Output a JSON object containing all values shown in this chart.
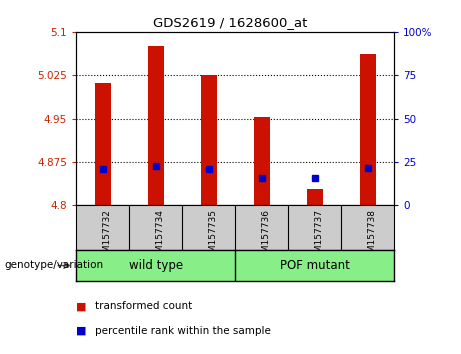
{
  "title": "GDS2619 / 1628600_at",
  "samples": [
    "GSM157732",
    "GSM157734",
    "GSM157735",
    "GSM157736",
    "GSM157737",
    "GSM157738"
  ],
  "bar_values": [
    5.012,
    5.075,
    5.025,
    4.952,
    4.828,
    5.062
  ],
  "percentile_values": [
    4.862,
    4.868,
    4.863,
    4.848,
    4.848,
    4.865
  ],
  "ylim_left": [
    4.8,
    5.1
  ],
  "ylim_right": [
    0,
    100
  ],
  "yticks_left": [
    4.8,
    4.875,
    4.95,
    5.025,
    5.1
  ],
  "ytick_labels_left": [
    "4.8",
    "4.875",
    "4.95",
    "5.025",
    "5.1"
  ],
  "yticks_right": [
    0,
    25,
    50,
    75,
    100
  ],
  "ytick_labels_right": [
    "0",
    "25",
    "50",
    "75",
    "100%"
  ],
  "bar_color": "#cc1100",
  "percentile_color": "#0000cc",
  "bar_bottom": 4.8,
  "plot_bg_color": "#ffffff",
  "label_area_bg": "#cccccc",
  "group_area_bg": "#88ee88",
  "left_tick_color": "#cc2200",
  "right_tick_color": "#0000cc",
  "legend_red_label": "transformed count",
  "legend_blue_label": "percentile rank within the sample",
  "genotype_label": "genotype/variation",
  "group1_label": "wild type",
  "group2_label": "POF mutant"
}
